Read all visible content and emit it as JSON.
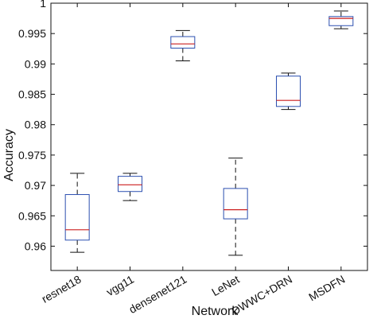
{
  "chart_data": {
    "type": "box",
    "xlabel": "Network",
    "ylabel": "Accuracy",
    "ylim": [
      0.956,
      1.0
    ],
    "yticks": [
      "0.96",
      "0.965",
      "0.97",
      "0.975",
      "0.98",
      "0.985",
      "0.99",
      "0.995",
      "1"
    ],
    "grid": false,
    "categories": [
      "resnet18",
      "vgg11",
      "densenet121",
      "LeNet",
      "DWWC+DRN",
      "MSDFN"
    ],
    "boxes": [
      {
        "category": "resnet18",
        "whisker_low": 0.959,
        "q1": 0.961,
        "median": 0.9627,
        "q3": 0.9685,
        "whisker_high": 0.972
      },
      {
        "category": "vgg11",
        "whisker_low": 0.9675,
        "q1": 0.969,
        "median": 0.9701,
        "q3": 0.9715,
        "whisker_high": 0.972
      },
      {
        "category": "densenet121",
        "whisker_low": 0.9905,
        "q1": 0.9926,
        "median": 0.9933,
        "q3": 0.9945,
        "whisker_high": 0.9955
      },
      {
        "category": "LeNet",
        "whisker_low": 0.9585,
        "q1": 0.9645,
        "median": 0.966,
        "q3": 0.9695,
        "whisker_high": 0.9745
      },
      {
        "category": "DWWC+DRN",
        "whisker_low": 0.9825,
        "q1": 0.983,
        "median": 0.984,
        "q3": 0.988,
        "whisker_high": 0.9885
      },
      {
        "category": "MSDFN",
        "whisker_low": 0.9958,
        "q1": 0.9963,
        "median": 0.9975,
        "q3": 0.9978,
        "whisker_high": 0.9987
      }
    ],
    "colors": {
      "box": "#2b4fb0",
      "median": "#cc1f1f",
      "whisker": "#111111",
      "axis": "#111111"
    }
  }
}
